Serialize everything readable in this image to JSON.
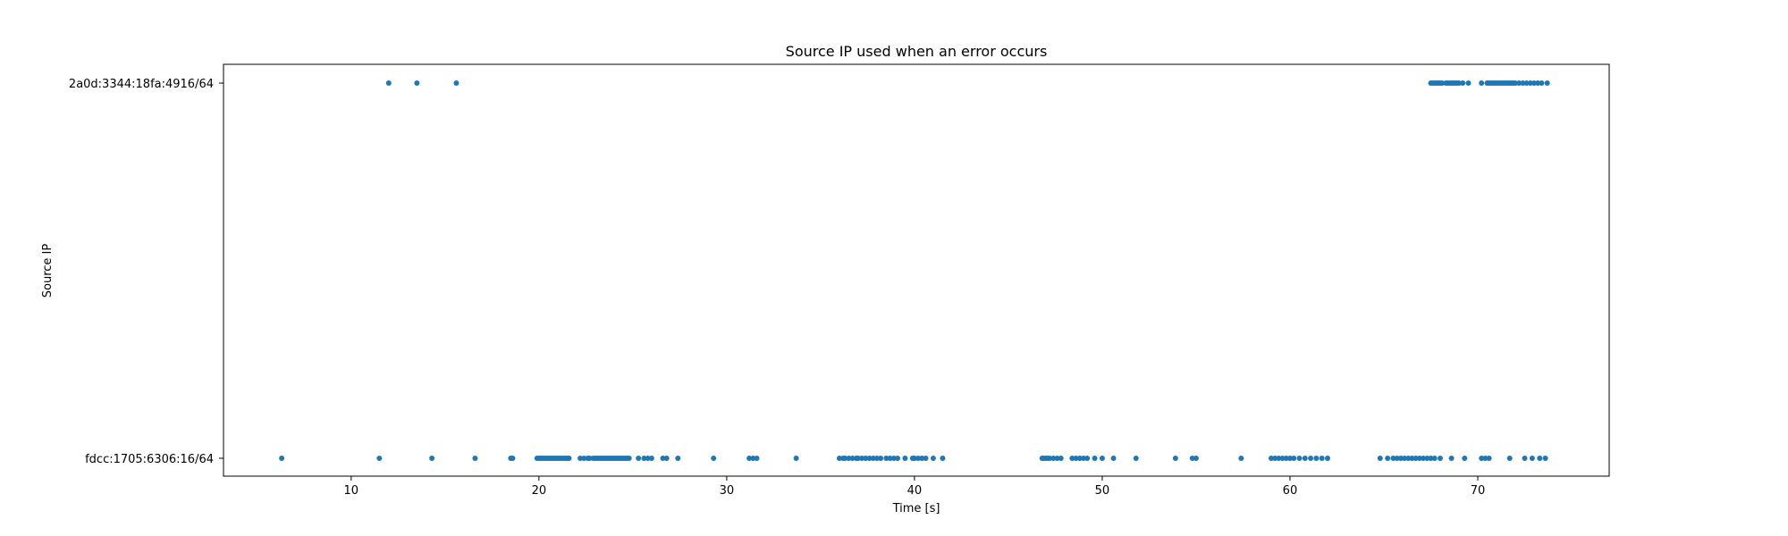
{
  "chart_data": {
    "type": "scatter",
    "title": "Source IP used when an error occurs",
    "xlabel": "Time [s]",
    "ylabel": "Source IP",
    "xlim": [
      3.2,
      77
    ],
    "x_ticks": [
      10,
      20,
      30,
      40,
      50,
      60,
      70
    ],
    "y_categories": [
      "fdcc:1705:6306:16/64",
      "2a0d:3344:18fa:4916/64"
    ],
    "color": "#1f77b4",
    "grid": false,
    "series": [
      {
        "category": "2a0d:3344:18fa:4916/64",
        "x": [
          12.0,
          13.5,
          15.6,
          67.5,
          67.6,
          67.7,
          67.8,
          67.9,
          68.0,
          68.1,
          68.3,
          68.4,
          68.5,
          68.6,
          68.7,
          68.8,
          68.9,
          69.0,
          69.2,
          69.5,
          70.2,
          70.5,
          70.6,
          70.7,
          70.8,
          70.9,
          71.0,
          71.1,
          71.2,
          71.3,
          71.4,
          71.5,
          71.6,
          71.7,
          71.8,
          71.9,
          72.0,
          72.2,
          72.4,
          72.6,
          72.8,
          73.0,
          73.2,
          73.4,
          73.7
        ]
      },
      {
        "category": "fdcc:1705:6306:16/64",
        "x": [
          6.3,
          11.5,
          14.3,
          16.6,
          18.5,
          18.6,
          19.9,
          20.0,
          20.1,
          20.2,
          20.3,
          20.4,
          20.5,
          20.6,
          20.7,
          20.8,
          20.9,
          21.0,
          21.1,
          21.2,
          21.3,
          21.4,
          21.5,
          21.6,
          22.2,
          22.4,
          22.6,
          22.7,
          22.9,
          23.0,
          23.1,
          23.2,
          23.3,
          23.4,
          23.5,
          23.6,
          23.7,
          23.8,
          23.9,
          24.0,
          24.1,
          24.2,
          24.3,
          24.4,
          24.5,
          24.6,
          24.7,
          24.8,
          25.3,
          25.6,
          25.8,
          26.0,
          26.6,
          26.8,
          27.4,
          29.3,
          31.2,
          31.4,
          31.6,
          33.7,
          36.0,
          36.2,
          36.3,
          36.5,
          36.7,
          36.9,
          37.0,
          37.2,
          37.4,
          37.6,
          37.8,
          38.0,
          38.2,
          38.5,
          38.7,
          38.9,
          39.1,
          39.5,
          39.9,
          40.0,
          40.2,
          40.4,
          40.6,
          41.0,
          41.5,
          46.8,
          46.9,
          47.0,
          47.1,
          47.2,
          47.4,
          47.6,
          47.8,
          48.4,
          48.6,
          48.8,
          49.0,
          49.2,
          49.6,
          50.0,
          50.6,
          51.8,
          53.9,
          54.8,
          55.0,
          57.4,
          59.0,
          59.2,
          59.4,
          59.6,
          59.8,
          60.0,
          60.2,
          60.5,
          60.8,
          61.1,
          61.4,
          61.7,
          62.0,
          64.8,
          65.2,
          65.5,
          65.7,
          65.9,
          66.1,
          66.3,
          66.5,
          66.7,
          66.9,
          67.1,
          67.3,
          67.5,
          67.7,
          68.0,
          68.6,
          69.3,
          70.2,
          70.4,
          70.6,
          71.7,
          72.5,
          72.9,
          73.3,
          73.6
        ]
      }
    ]
  }
}
